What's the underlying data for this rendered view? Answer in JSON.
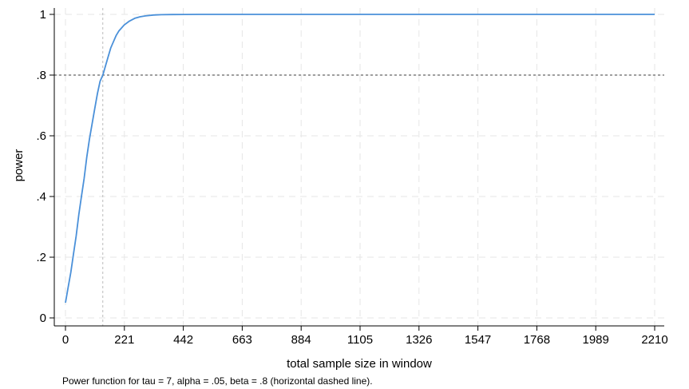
{
  "chart_data": {
    "type": "line",
    "x_label": "total sample size in window",
    "y_label": "power",
    "note": "Power function for tau = 7, alpha = .05, beta = .8 (horizontal dashed line).",
    "x_ticks": [
      {
        "value": 0,
        "label": "0"
      },
      {
        "value": 221,
        "label": "221"
      },
      {
        "value": 442,
        "label": "442"
      },
      {
        "value": 663,
        "label": "663"
      },
      {
        "value": 884,
        "label": "884"
      },
      {
        "value": 1105,
        "label": "1105"
      },
      {
        "value": 1326,
        "label": "1326"
      },
      {
        "value": 1547,
        "label": "1547"
      },
      {
        "value": 1768,
        "label": "1768"
      },
      {
        "value": 1989,
        "label": "1989"
      },
      {
        "value": 2210,
        "label": "2210"
      }
    ],
    "y_ticks": [
      {
        "value": 0,
        "label": "0"
      },
      {
        "value": 0.2,
        "label": ".2"
      },
      {
        "value": 0.4,
        "label": ".4"
      },
      {
        "value": 0.6,
        "label": ".6"
      },
      {
        "value": 0.8,
        "label": ".8"
      },
      {
        "value": 1,
        "label": "1"
      }
    ],
    "xlim": [
      0,
      2210
    ],
    "ylim": [
      0,
      1
    ],
    "grid": true,
    "series": [
      {
        "color": "#4a90d9",
        "x": [
          0,
          10,
          20,
          30,
          40,
          50,
          60,
          70,
          80,
          90,
          100,
          110,
          120,
          130,
          140,
          150,
          160,
          170,
          180,
          190,
          200,
          220,
          240,
          260,
          280,
          300,
          330,
          360,
          400,
          450,
          500,
          600,
          800,
          1000,
          1500,
          2210
        ],
        "y": [
          0.05,
          0.1,
          0.15,
          0.21,
          0.27,
          0.34,
          0.4,
          0.46,
          0.53,
          0.59,
          0.64,
          0.69,
          0.74,
          0.78,
          0.8,
          0.83,
          0.86,
          0.89,
          0.91,
          0.93,
          0.945,
          0.965,
          0.978,
          0.987,
          0.992,
          0.995,
          0.998,
          0.999,
          0.9995,
          0.9998,
          1.0,
          1.0,
          1.0,
          1.0,
          1.0,
          1.0
        ]
      }
    ],
    "reference_lines": [
      {
        "orientation": "horizontal",
        "value": 0.8,
        "style": "dashed",
        "color": "#666666"
      },
      {
        "orientation": "vertical",
        "value": 140,
        "style": "dashed",
        "color": "#bbbbbb"
      }
    ]
  }
}
